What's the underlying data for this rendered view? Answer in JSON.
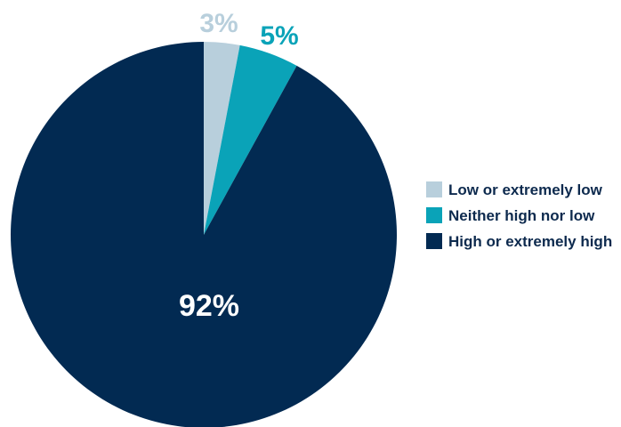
{
  "chart_data": {
    "type": "pie",
    "title": "",
    "slices": [
      {
        "label": "Low or extremely low",
        "value": 3,
        "display": "3%",
        "color": "#b8cfdc"
      },
      {
        "label": "Neither high nor low",
        "value": 5,
        "display": "5%",
        "color": "#0aa3b8"
      },
      {
        "label": "High or extremely high",
        "value": 92,
        "display": "92%",
        "color": "#022a52"
      }
    ],
    "label_colors": [
      "#b8cfdc",
      "#0aa3b8",
      "#ffffff"
    ],
    "start": "12 o'clock",
    "direction": "clockwise",
    "legend_position": "right"
  }
}
